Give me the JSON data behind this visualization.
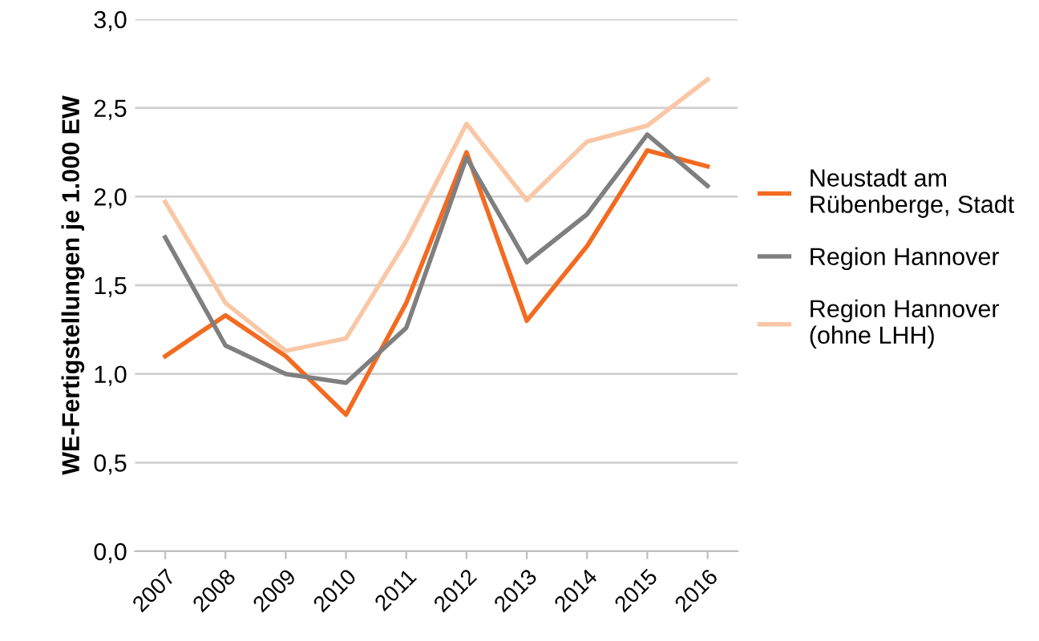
{
  "chart_data": {
    "type": "line",
    "ylabel": "WE-Fertigstellungen je 1.000 EW",
    "categories": [
      "2007",
      "2008",
      "2009",
      "2010",
      "2011",
      "2012",
      "2013",
      "2014",
      "2015",
      "2016"
    ],
    "ylim": [
      0,
      3
    ],
    "yticks": [
      {
        "value": 0,
        "label": "0,0"
      },
      {
        "value": 0.5,
        "label": "0,5"
      },
      {
        "value": 1,
        "label": "1,0"
      },
      {
        "value": 1.5,
        "label": "1,5"
      },
      {
        "value": 2,
        "label": "2,0"
      },
      {
        "value": 2.5,
        "label": "2,5"
      },
      {
        "value": 3,
        "label": "3,0"
      }
    ],
    "grid": "y",
    "legend": "right",
    "marker": "none",
    "line_style": "solid",
    "series": [
      {
        "name": "Neustadt am\nRübenberge, Stadt",
        "color": "#f26b21",
        "values": [
          1.1,
          1.33,
          1.1,
          0.77,
          1.4,
          2.25,
          1.3,
          1.72,
          2.26,
          2.17
        ]
      },
      {
        "name": "Region Hannover",
        "color": "#7f7f7f",
        "values": [
          1.77,
          1.16,
          1.0,
          0.95,
          1.26,
          2.22,
          1.63,
          1.9,
          2.35,
          2.06
        ]
      },
      {
        "name": "Region Hannover\n(ohne LHH)",
        "color": "#f9c7a6",
        "values": [
          1.97,
          1.4,
          1.13,
          1.2,
          1.75,
          2.41,
          1.98,
          2.31,
          2.4,
          2.66
        ]
      }
    ]
  }
}
